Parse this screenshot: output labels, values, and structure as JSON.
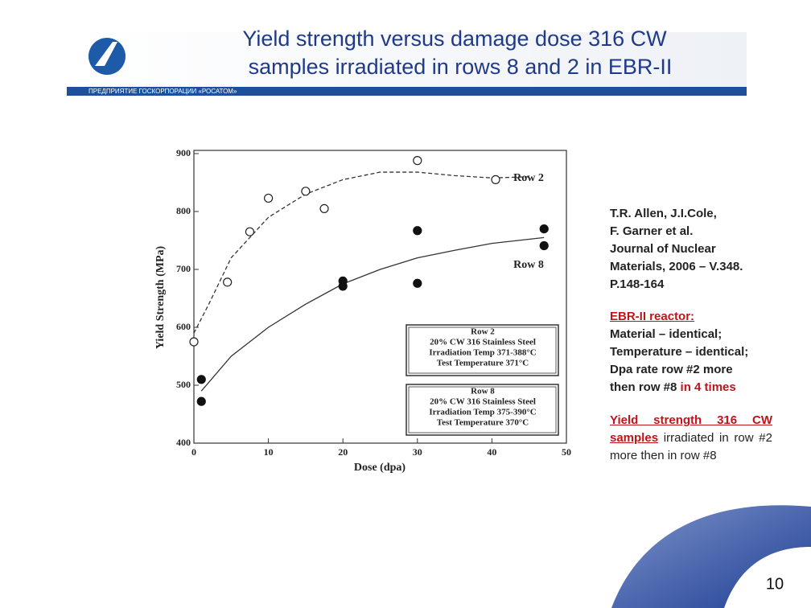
{
  "slide": {
    "title_lines": [
      "Yield strength versus damage dose 316 CW",
      "samples irradiated in rows 8 and 2 in EBR-II"
    ],
    "org_line": "ПРЕДПРИЯТИЕ ГОСКОРПОРАЦИИ «РОСАТОМ»",
    "citation_lines": [
      "T.R. Allen, J.I.Cole,",
      "F. Garner et al.",
      "Journal of Nuclear",
      "Materials, 2006 – V.348.",
      "P.148-164"
    ],
    "reactor_heading": "EBR-II reactor:",
    "reactor_lines": [
      "Material – identical;",
      "Temperature – identical;",
      "Dpa rate row #2 more"
    ],
    "reactor_last": "then row #8",
    "reactor_last_highlight": "in 4 times",
    "conclusion_highlight": "Yield strength 316 CW samples",
    "conclusion_rest": "irradiated in row #2 more then in row #8",
    "page_number": "10"
  },
  "chart_data": {
    "type": "scatter",
    "x_label": "Dose (dpa)",
    "y_label": "Yield Strength (MPa)",
    "xlim": [
      0,
      50
    ],
    "xticks": [
      0,
      10,
      20,
      30,
      40,
      50
    ],
    "ylim": [
      400,
      900
    ],
    "yticks": [
      400,
      500,
      600,
      700,
      800,
      900
    ],
    "grid": false,
    "series": [
      {
        "name": "Row 2",
        "marker": "open",
        "color": "#222222",
        "x": [
          0,
          4.5,
          7.5,
          10,
          15,
          17.5,
          30,
          40.5
        ],
        "values": [
          575,
          678,
          765,
          823,
          835,
          805,
          888,
          855
        ],
        "fit_style": "dashed",
        "fit_x": [
          0,
          2,
          5,
          10,
          15,
          20,
          25,
          30,
          35,
          40,
          45
        ],
        "fit_values": [
          590,
          640,
          720,
          790,
          830,
          855,
          868,
          868,
          862,
          858,
          860
        ]
      },
      {
        "name": "Row 8",
        "marker": "filled",
        "color": "#111111",
        "x": [
          1,
          1,
          20,
          20,
          30,
          30,
          47,
          47
        ],
        "values": [
          510,
          472,
          680,
          671,
          767,
          676,
          770,
          741
        ],
        "fit_style": "solid",
        "fit_x": [
          1,
          5,
          10,
          15,
          20,
          25,
          30,
          35,
          40,
          47
        ],
        "fit_values": [
          490,
          550,
          600,
          640,
          675,
          700,
          720,
          733,
          745,
          755
        ]
      }
    ],
    "legend_boxes": [
      [
        "Row 2",
        "20% CW 316 Stainless Steel",
        "Irradiation Temp 371-388°C",
        "Test Temperature 371°C"
      ],
      [
        "Row 8",
        "20% CW 316 Stainless Steel",
        "Irradiation Temp 375-390°C",
        "Test Temperature 370°C"
      ]
    ]
  }
}
